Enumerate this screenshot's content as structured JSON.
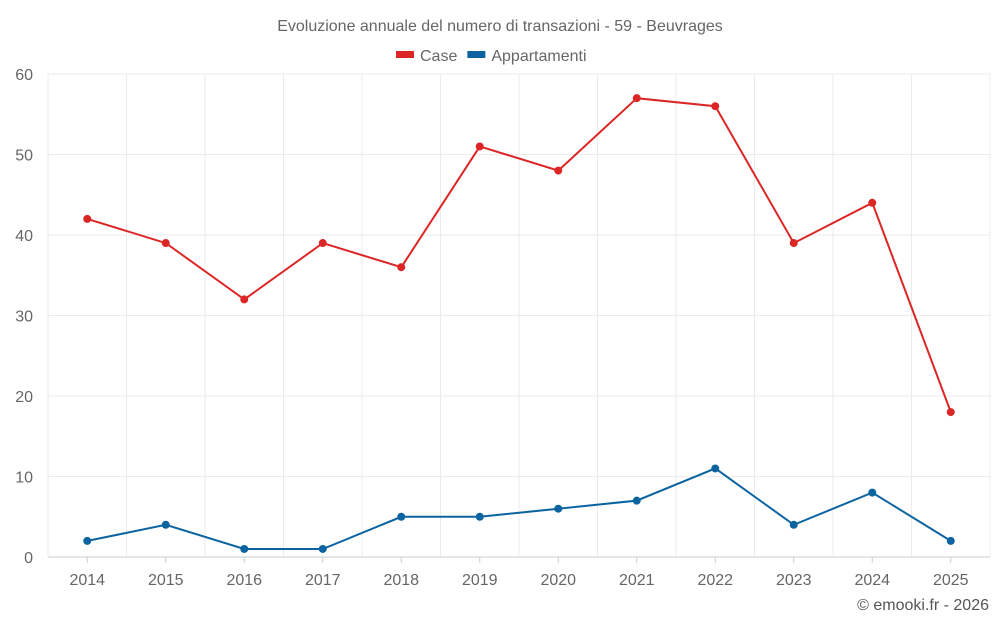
{
  "chart_data": {
    "type": "line",
    "title": "Evoluzione annuale del numero di transazioni - 59 - Beuvrages",
    "categories": [
      "2014",
      "2015",
      "2016",
      "2017",
      "2018",
      "2019",
      "2020",
      "2021",
      "2022",
      "2023",
      "2024",
      "2025"
    ],
    "series": [
      {
        "name": "Case",
        "color": "#dc2626",
        "values": [
          42,
          39,
          32,
          39,
          36,
          51,
          48,
          57,
          56,
          39,
          44,
          18
        ]
      },
      {
        "name": "Appartamenti",
        "color": "#0b64a0",
        "values": [
          2,
          4,
          1,
          1,
          5,
          5,
          6,
          7,
          11,
          4,
          8,
          2
        ]
      }
    ],
    "yticks": [
      0,
      10,
      20,
      30,
      40,
      50,
      60
    ],
    "ylim": [
      0,
      60
    ],
    "xlabel": "",
    "ylabel": "",
    "grid": true,
    "legend": "top-center"
  },
  "credit": "© emooki.fr - 2026"
}
